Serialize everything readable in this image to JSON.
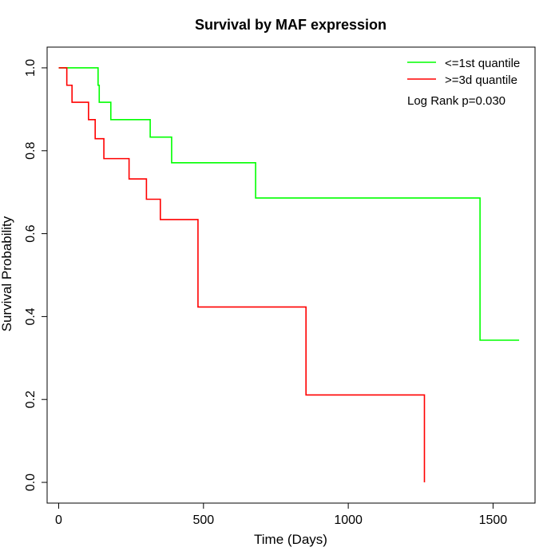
{
  "chart_data": {
    "type": "line",
    "title": "Survival by MAF expression",
    "xlabel": "Time (Days)",
    "ylabel": "Survival Probability",
    "xlim": [
      -40,
      1645
    ],
    "ylim": [
      -0.05,
      1.05
    ],
    "x_ticks": [
      0,
      500,
      1000,
      1500
    ],
    "y_ticks": [
      0.0,
      0.2,
      0.4,
      0.6,
      0.8,
      1.0
    ],
    "x_tick_labels": [
      "0",
      "500",
      "1000",
      "1500"
    ],
    "y_tick_labels": [
      "0.0",
      "0.2",
      "0.4",
      "0.6",
      "0.8",
      "1.0"
    ],
    "legend_position": "top-right",
    "annotation": "Log Rank p=0.030",
    "series": [
      {
        "name": "<=1st quantile",
        "color": "#00ff00",
        "x": [
          0,
          136,
          140,
          180,
          316,
          390,
          680,
          1455,
          1590
        ],
        "y": [
          1.0,
          0.958,
          0.917,
          0.875,
          0.833,
          0.771,
          0.686,
          0.343,
          0.343
        ]
      },
      {
        "name": ">=3d quantile",
        "color": "#ff0000",
        "x": [
          0,
          28,
          46,
          103,
          126,
          156,
          243,
          303,
          351,
          481,
          854,
          1263
        ],
        "y": [
          1.0,
          0.958,
          0.917,
          0.875,
          0.829,
          0.781,
          0.732,
          0.683,
          0.634,
          0.423,
          0.211,
          0.0
        ]
      }
    ]
  }
}
